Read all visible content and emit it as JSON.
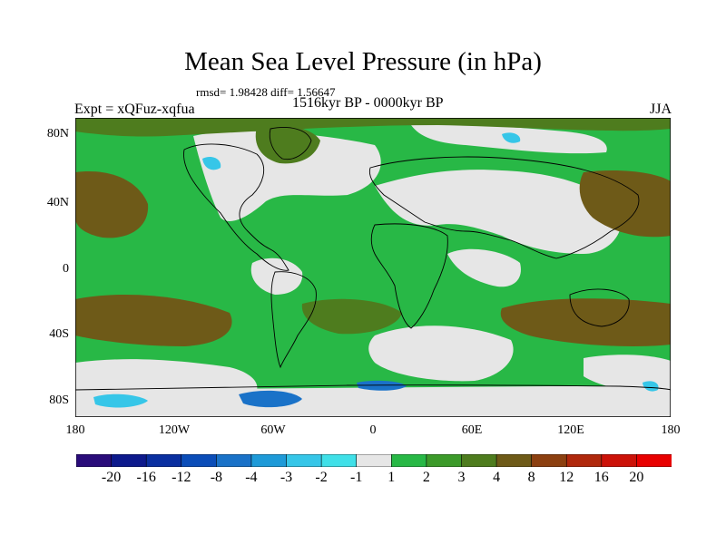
{
  "title": "Mean Sea Level Pressure (in hPa)",
  "stats": "rmsd= 1.98428 diff= 1.56647",
  "left_label": "Expt = xQFuz-xqfua",
  "center_label": "1516kyr BP - 0000kyr BP",
  "right_label": "JJA",
  "y_ticks": [
    "80N",
    "40N",
    "0",
    "40S",
    "80S"
  ],
  "x_ticks": [
    "180",
    "120W",
    "60W",
    "0",
    "60E",
    "120E",
    "180"
  ],
  "colorbar": {
    "labels": [
      "-20",
      "-16",
      "-12",
      "-8",
      "-4",
      "-3",
      "-2",
      "-1",
      "1",
      "2",
      "3",
      "4",
      "8",
      "12",
      "16",
      "20"
    ],
    "colors": [
      "#2a0c7a",
      "#0d1a8c",
      "#0a2fa0",
      "#0b4db8",
      "#1a72c8",
      "#1e9ad8",
      "#36c6e8",
      "#40e0e8",
      "#e6e6e6",
      "#28b846",
      "#3c9a2a",
      "#4e7c1e",
      "#6e5a18",
      "#8c4010",
      "#b0280c",
      "#cc1208",
      "#e80000"
    ]
  },
  "map_colors": {
    "near_zero": "#e6e6e6",
    "pos_1_2": "#28b846",
    "pos_3_4": "#4e7c1e",
    "pos_4_8": "#6e5a18",
    "neg_2": "#36c6e8",
    "neg_4": "#1a72c8",
    "neg_8": "#0b4db8"
  }
}
